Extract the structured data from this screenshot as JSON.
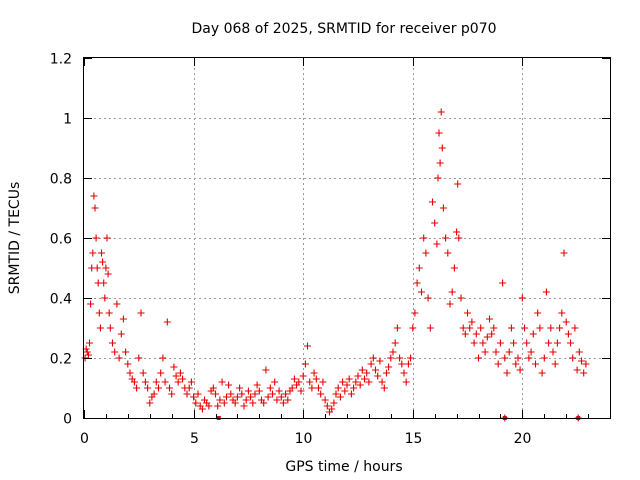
{
  "chart_data": {
    "type": "scatter",
    "title": "Day 068 of 2025, SRMTID for receiver p070",
    "xlabel": "GPS time / hours",
    "ylabel": "SRMTID / TECUs",
    "xlim": [
      0,
      24
    ],
    "ylim": [
      0,
      1.2
    ],
    "xticks": [
      0,
      5,
      10,
      15,
      20
    ],
    "xtick_labels": [
      "0",
      "5",
      "10",
      "15",
      "20"
    ],
    "yticks": [
      0,
      0.2,
      0.4,
      0.6,
      0.8,
      1.0,
      1.2
    ],
    "ytick_labels": [
      "0",
      "0.2",
      "0.4",
      "0.6",
      "0.8",
      "1",
      "1.2"
    ],
    "grid": true,
    "marker": "+",
    "color": "#e60000",
    "series": [
      {
        "name": "SRMTID",
        "points": [
          [
            0.05,
            0.2
          ],
          [
            0.1,
            0.23
          ],
          [
            0.15,
            0.22
          ],
          [
            0.2,
            0.21
          ],
          [
            0.25,
            0.25
          ],
          [
            0.3,
            0.38
          ],
          [
            0.35,
            0.5
          ],
          [
            0.4,
            0.55
          ],
          [
            0.45,
            0.74
          ],
          [
            0.5,
            0.7
          ],
          [
            0.55,
            0.6
          ],
          [
            0.6,
            0.5
          ],
          [
            0.65,
            0.45
          ],
          [
            0.7,
            0.35
          ],
          [
            0.75,
            0.3
          ],
          [
            0.8,
            0.55
          ],
          [
            0.85,
            0.52
          ],
          [
            0.9,
            0.45
          ],
          [
            0.95,
            0.4
          ],
          [
            1.0,
            0.5
          ],
          [
            1.05,
            0.6
          ],
          [
            1.1,
            0.48
          ],
          [
            1.15,
            0.35
          ],
          [
            1.2,
            0.3
          ],
          [
            1.3,
            0.25
          ],
          [
            1.4,
            0.22
          ],
          [
            1.5,
            0.38
          ],
          [
            1.6,
            0.2
          ],
          [
            1.7,
            0.28
          ],
          [
            1.8,
            0.33
          ],
          [
            1.9,
            0.22
          ],
          [
            2.0,
            0.18
          ],
          [
            2.1,
            0.15
          ],
          [
            2.2,
            0.13
          ],
          [
            2.3,
            0.12
          ],
          [
            2.4,
            0.1
          ],
          [
            2.5,
            0.2
          ],
          [
            2.6,
            0.35
          ],
          [
            2.7,
            0.15
          ],
          [
            2.8,
            0.12
          ],
          [
            2.9,
            0.1
          ],
          [
            3.0,
            0.05
          ],
          [
            3.1,
            0.07
          ],
          [
            3.2,
            0.08
          ],
          [
            3.3,
            0.12
          ],
          [
            3.4,
            0.1
          ],
          [
            3.5,
            0.15
          ],
          [
            3.6,
            0.2
          ],
          [
            3.7,
            0.12
          ],
          [
            3.8,
            0.32
          ],
          [
            3.9,
            0.1
          ],
          [
            4.0,
            0.08
          ],
          [
            4.1,
            0.17
          ],
          [
            4.2,
            0.14
          ],
          [
            4.3,
            0.12
          ],
          [
            4.4,
            0.15
          ],
          [
            4.5,
            0.13
          ],
          [
            4.6,
            0.1
          ],
          [
            4.7,
            0.08
          ],
          [
            4.8,
            0.1
          ],
          [
            4.9,
            0.12
          ],
          [
            5.0,
            0.07
          ],
          [
            5.1,
            0.05
          ],
          [
            5.2,
            0.08
          ],
          [
            5.3,
            0.04
          ],
          [
            5.4,
            0.03
          ],
          [
            5.5,
            0.06
          ],
          [
            5.6,
            0.05
          ],
          [
            5.7,
            0.04
          ],
          [
            5.8,
            0.09
          ],
          [
            5.9,
            0.1
          ],
          [
            6.0,
            0.08
          ],
          [
            6.1,
            0.04
          ],
          [
            6.2,
            0.06
          ],
          [
            6.3,
            0.12
          ],
          [
            6.4,
            0.05
          ],
          [
            6.5,
            0.07
          ],
          [
            6.6,
            0.11
          ],
          [
            6.7,
            0.08
          ],
          [
            6.8,
            0.06
          ],
          [
            6.9,
            0.05
          ],
          [
            7.0,
            0.07
          ],
          [
            7.1,
            0.1
          ],
          [
            7.2,
            0.08
          ],
          [
            7.3,
            0.04
          ],
          [
            7.4,
            0.06
          ],
          [
            7.5,
            0.09
          ],
          [
            7.6,
            0.07
          ],
          [
            7.7,
            0.05
          ],
          [
            7.8,
            0.08
          ],
          [
            7.9,
            0.11
          ],
          [
            8.0,
            0.09
          ],
          [
            8.1,
            0.06
          ],
          [
            8.2,
            0.05
          ],
          [
            8.3,
            0.16
          ],
          [
            8.4,
            0.07
          ],
          [
            8.5,
            0.1
          ],
          [
            8.6,
            0.08
          ],
          [
            8.7,
            0.12
          ],
          [
            8.8,
            0.06
          ],
          [
            8.9,
            0.09
          ],
          [
            9.0,
            0.07
          ],
          [
            9.1,
            0.05
          ],
          [
            9.2,
            0.08
          ],
          [
            9.3,
            0.06
          ],
          [
            9.4,
            0.09
          ],
          [
            9.5,
            0.1
          ],
          [
            9.6,
            0.13
          ],
          [
            9.7,
            0.11
          ],
          [
            9.8,
            0.12
          ],
          [
            9.9,
            0.09
          ],
          [
            10.0,
            0.14
          ],
          [
            10.1,
            0.18
          ],
          [
            10.2,
            0.24
          ],
          [
            10.3,
            0.12
          ],
          [
            10.4,
            0.1
          ],
          [
            10.5,
            0.15
          ],
          [
            10.6,
            0.13
          ],
          [
            10.7,
            0.1
          ],
          [
            10.8,
            0.08
          ],
          [
            10.9,
            0.12
          ],
          [
            11.0,
            0.06
          ],
          [
            11.1,
            0.04
          ],
          [
            11.2,
            0.02
          ],
          [
            11.3,
            0.03
          ],
          [
            11.4,
            0.05
          ],
          [
            11.5,
            0.08
          ],
          [
            11.6,
            0.1
          ],
          [
            11.7,
            0.07
          ],
          [
            11.8,
            0.12
          ],
          [
            11.9,
            0.09
          ],
          [
            12.0,
            0.11
          ],
          [
            12.1,
            0.13
          ],
          [
            12.2,
            0.08
          ],
          [
            12.3,
            0.1
          ],
          [
            12.4,
            0.12
          ],
          [
            12.5,
            0.14
          ],
          [
            12.6,
            0.11
          ],
          [
            12.7,
            0.16
          ],
          [
            12.8,
            0.13
          ],
          [
            12.9,
            0.15
          ],
          [
            13.0,
            0.12
          ],
          [
            13.1,
            0.18
          ],
          [
            13.2,
            0.2
          ],
          [
            13.3,
            0.16
          ],
          [
            13.4,
            0.14
          ],
          [
            13.5,
            0.19
          ],
          [
            13.6,
            0.12
          ],
          [
            13.7,
            0.1
          ],
          [
            13.8,
            0.15
          ],
          [
            13.9,
            0.17
          ],
          [
            14.0,
            0.2
          ],
          [
            14.1,
            0.22
          ],
          [
            14.2,
            0.25
          ],
          [
            14.3,
            0.3
          ],
          [
            14.4,
            0.2
          ],
          [
            14.5,
            0.18
          ],
          [
            14.6,
            0.15
          ],
          [
            14.7,
            0.12
          ],
          [
            14.8,
            0.18
          ],
          [
            14.9,
            0.2
          ],
          [
            15.0,
            0.3
          ],
          [
            15.1,
            0.35
          ],
          [
            15.2,
            0.45
          ],
          [
            15.3,
            0.5
          ],
          [
            15.4,
            0.42
          ],
          [
            15.5,
            0.6
          ],
          [
            15.6,
            0.55
          ],
          [
            15.7,
            0.4
          ],
          [
            15.8,
            0.3
          ],
          [
            15.9,
            0.72
          ],
          [
            16.0,
            0.65
          ],
          [
            16.1,
            0.58
          ],
          [
            16.15,
            0.8
          ],
          [
            16.2,
            0.95
          ],
          [
            16.25,
            0.85
          ],
          [
            16.3,
            1.02
          ],
          [
            16.35,
            0.9
          ],
          [
            16.4,
            0.7
          ],
          [
            16.5,
            0.6
          ],
          [
            16.6,
            0.55
          ],
          [
            16.7,
            0.38
          ],
          [
            16.8,
            0.42
          ],
          [
            16.9,
            0.5
          ],
          [
            17.0,
            0.62
          ],
          [
            17.05,
            0.78
          ],
          [
            17.1,
            0.6
          ],
          [
            17.2,
            0.4
          ],
          [
            17.3,
            0.3
          ],
          [
            17.4,
            0.28
          ],
          [
            17.5,
            0.35
          ],
          [
            17.6,
            0.3
          ],
          [
            17.7,
            0.32
          ],
          [
            17.8,
            0.25
          ],
          [
            17.9,
            0.28
          ],
          [
            18.0,
            0.2
          ],
          [
            18.1,
            0.3
          ],
          [
            18.2,
            0.25
          ],
          [
            18.3,
            0.22
          ],
          [
            18.4,
            0.27
          ],
          [
            18.5,
            0.33
          ],
          [
            18.6,
            0.28
          ],
          [
            18.7,
            0.3
          ],
          [
            18.8,
            0.22
          ],
          [
            18.9,
            0.18
          ],
          [
            19.0,
            0.25
          ],
          [
            19.1,
            0.45
          ],
          [
            19.2,
            0.2
          ],
          [
            19.3,
            0.15
          ],
          [
            19.4,
            0.22
          ],
          [
            19.5,
            0.3
          ],
          [
            19.6,
            0.25
          ],
          [
            19.7,
            0.18
          ],
          [
            19.8,
            0.2
          ],
          [
            19.9,
            0.16
          ],
          [
            20.0,
            0.4
          ],
          [
            20.1,
            0.3
          ],
          [
            20.2,
            0.25
          ],
          [
            20.3,
            0.2
          ],
          [
            20.4,
            0.22
          ],
          [
            20.5,
            0.28
          ],
          [
            20.6,
            0.18
          ],
          [
            20.7,
            0.35
          ],
          [
            20.8,
            0.3
          ],
          [
            20.9,
            0.15
          ],
          [
            21.0,
            0.2
          ],
          [
            21.1,
            0.42
          ],
          [
            21.2,
            0.25
          ],
          [
            21.3,
            0.3
          ],
          [
            21.4,
            0.22
          ],
          [
            21.5,
            0.18
          ],
          [
            21.6,
            0.25
          ],
          [
            21.7,
            0.3
          ],
          [
            21.8,
            0.35
          ],
          [
            21.9,
            0.55
          ],
          [
            22.0,
            0.32
          ],
          [
            22.1,
            0.28
          ],
          [
            22.2,
            0.25
          ],
          [
            22.3,
            0.2
          ],
          [
            22.4,
            0.3
          ],
          [
            22.5,
            0.16
          ],
          [
            22.6,
            0.22
          ],
          [
            22.7,
            0.19
          ],
          [
            22.8,
            0.15
          ],
          [
            22.9,
            0.18
          ],
          [
            19.2,
            0.0
          ],
          [
            22.55,
            0.0
          ]
        ]
      }
    ],
    "zero_markers": [
      [
        6.15,
        0.0
      ],
      [
        19.2,
        0.0
      ],
      [
        22.55,
        0.0
      ]
    ]
  }
}
